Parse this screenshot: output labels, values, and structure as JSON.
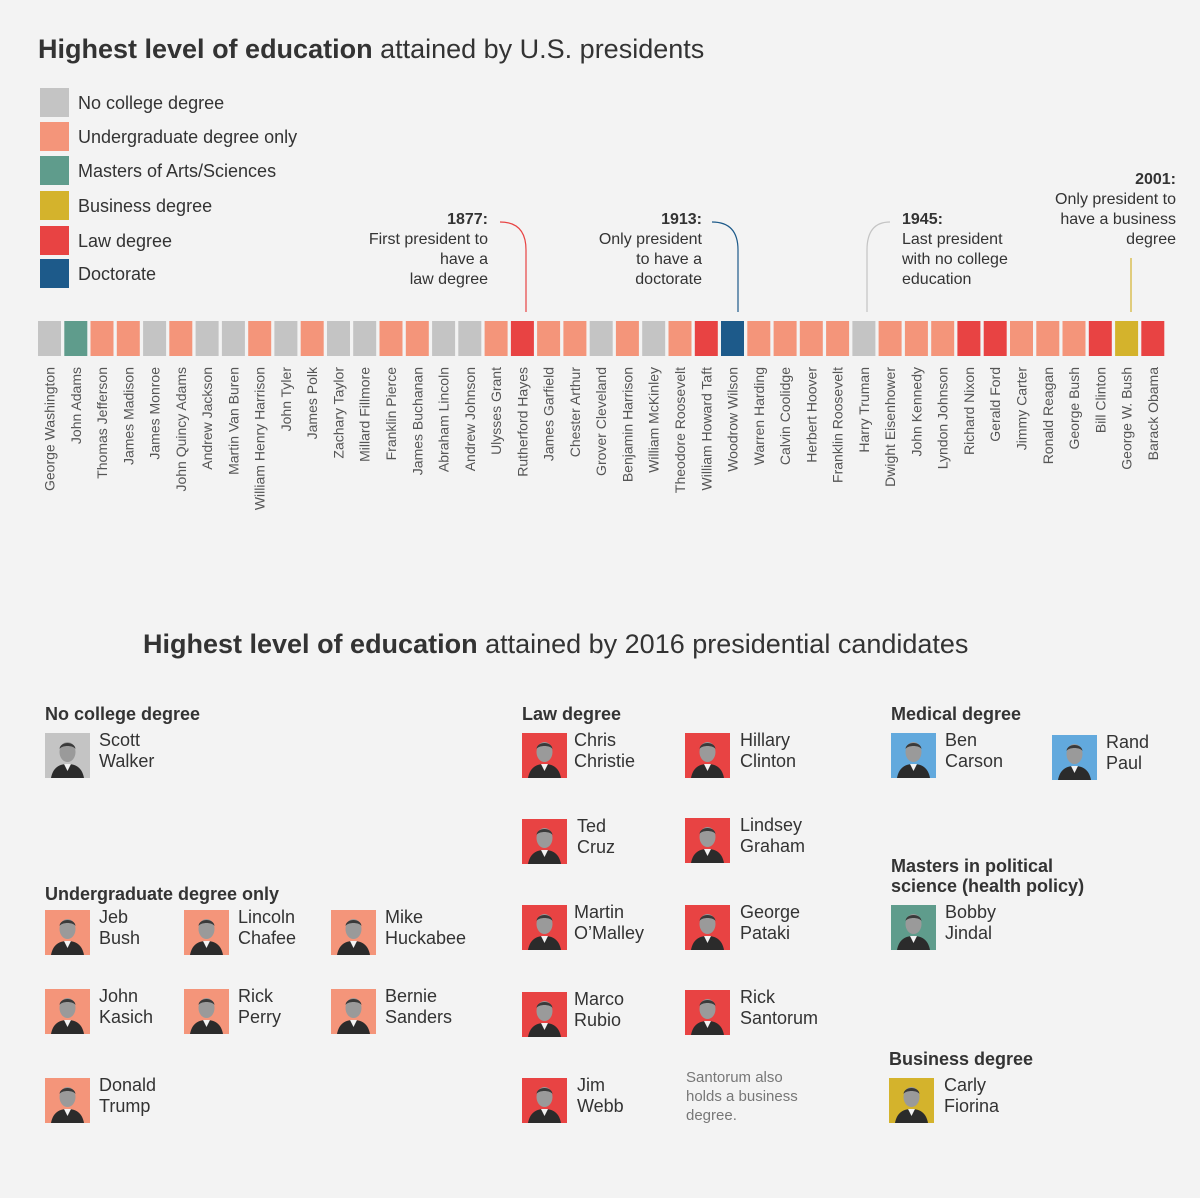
{
  "colors": {
    "none": "#c4c4c4",
    "undergrad": "#f4957a",
    "masters": "#5f9c8c",
    "business": "#d4b32c",
    "law": "#e84343",
    "doctorate": "#1d5a8a",
    "medical": "#62a9dd"
  },
  "top_title": {
    "bold": "Highest level of education",
    "rest": " attained by U.S. presidents"
  },
  "bottom_title": {
    "bold": "Highest level of education",
    "rest": " attained by 2016 presidential candidates"
  },
  "legend": [
    {
      "label": "No college degree",
      "color": "#c4c4c4"
    },
    {
      "label": "Undergraduate degree only",
      "color": "#f4957a"
    },
    {
      "label": "Masters of Arts/Sciences",
      "color": "#5f9c8c"
    },
    {
      "label": "Business degree",
      "color": "#d4b32c"
    },
    {
      "label": "Law degree",
      "color": "#e84343"
    },
    {
      "label": "Doctorate",
      "color": "#1d5a8a"
    }
  ],
  "annotations": [
    {
      "year": "1877:",
      "lines": [
        "First president to",
        "have a",
        "law degree"
      ]
    },
    {
      "year": "1913:",
      "lines": [
        "Only president",
        "to have a",
        "doctorate"
      ]
    },
    {
      "year": "1945:",
      "lines": [
        "Last president",
        "with no college",
        "education"
      ]
    },
    {
      "year": "2001:",
      "lines": [
        "Only president to",
        "have a business",
        "degree"
      ]
    }
  ],
  "chart_data": {
    "type": "table",
    "title": "Highest level of education attained by U.S. presidents",
    "presidents": [
      {
        "name": "George Washington",
        "degree": "No college degree"
      },
      {
        "name": "John Adams",
        "degree": "Masters of Arts/Sciences"
      },
      {
        "name": "Thomas Jefferson",
        "degree": "Undergraduate degree only"
      },
      {
        "name": "James Madison",
        "degree": "Undergraduate degree only"
      },
      {
        "name": "James Monroe",
        "degree": "No college degree"
      },
      {
        "name": "John Quincy Adams",
        "degree": "Undergraduate degree only"
      },
      {
        "name": "Andrew Jackson",
        "degree": "No college degree"
      },
      {
        "name": "Martin Van Buren",
        "degree": "No college degree"
      },
      {
        "name": "William Henry Harrison",
        "degree": "Undergraduate degree only"
      },
      {
        "name": "John Tyler",
        "degree": "No college degree"
      },
      {
        "name": "James Polk",
        "degree": "Undergraduate degree only"
      },
      {
        "name": "Zachary Taylor",
        "degree": "No college degree"
      },
      {
        "name": "Millard Fillmore",
        "degree": "No college degree"
      },
      {
        "name": "Franklin Pierce",
        "degree": "Undergraduate degree only"
      },
      {
        "name": "James Buchanan",
        "degree": "Undergraduate degree only"
      },
      {
        "name": "Abraham Lincoln",
        "degree": "No college degree"
      },
      {
        "name": "Andrew Johnson",
        "degree": "No college degree"
      },
      {
        "name": "Ulysses Grant",
        "degree": "Undergraduate degree only"
      },
      {
        "name": "Rutherford Hayes",
        "degree": "Law degree"
      },
      {
        "name": "James Garfield",
        "degree": "Undergraduate degree only"
      },
      {
        "name": "Chester Arthur",
        "degree": "Undergraduate degree only"
      },
      {
        "name": "Grover Cleveland",
        "degree": "No college degree"
      },
      {
        "name": "Benjamin Harrison",
        "degree": "Undergraduate degree only"
      },
      {
        "name": "William McKinley",
        "degree": "No college degree"
      },
      {
        "name": "Theodore Roosevelt",
        "degree": "Undergraduate degree only"
      },
      {
        "name": "William Howard Taft",
        "degree": "Law degree"
      },
      {
        "name": "Woodrow Wilson",
        "degree": "Doctorate"
      },
      {
        "name": "Warren Harding",
        "degree": "Undergraduate degree only"
      },
      {
        "name": "Calvin Coolidge",
        "degree": "Undergraduate degree only"
      },
      {
        "name": "Herbert Hoover",
        "degree": "Undergraduate degree only"
      },
      {
        "name": "Franklin Roosevelt",
        "degree": "Undergraduate degree only"
      },
      {
        "name": "Harry Truman",
        "degree": "No college degree"
      },
      {
        "name": "Dwight Eisenhower",
        "degree": "Undergraduate degree only"
      },
      {
        "name": "John Kennedy",
        "degree": "Undergraduate degree only"
      },
      {
        "name": "Lyndon Johnson",
        "degree": "Undergraduate degree only"
      },
      {
        "name": "Richard Nixon",
        "degree": "Law degree"
      },
      {
        "name": "Gerald Ford",
        "degree": "Law degree"
      },
      {
        "name": "Jimmy Carter",
        "degree": "Undergraduate degree only"
      },
      {
        "name": "Ronald Reagan",
        "degree": "Undergraduate degree only"
      },
      {
        "name": "George Bush",
        "degree": "Undergraduate degree only"
      },
      {
        "name": "Bill Clinton",
        "degree": "Law degree"
      },
      {
        "name": "George W. Bush",
        "degree": "Business degree"
      },
      {
        "name": "Barack Obama",
        "degree": "Law degree"
      }
    ]
  },
  "candidates": {
    "no_college": {
      "heading": "No college degree",
      "people": [
        {
          "first": "Scott",
          "last": "Walker"
        }
      ]
    },
    "undergrad": {
      "heading": "Undergraduate degree only",
      "people": [
        {
          "first": "Jeb",
          "last": "Bush"
        },
        {
          "first": "Lincoln",
          "last": "Chafee"
        },
        {
          "first": "Mike",
          "last": "Huckabee"
        },
        {
          "first": "John",
          "last": "Kasich"
        },
        {
          "first": "Rick",
          "last": "Perry"
        },
        {
          "first": "Bernie",
          "last": "Sanders"
        },
        {
          "first": "Donald",
          "last": "Trump"
        }
      ]
    },
    "law": {
      "heading": "Law degree",
      "people": [
        {
          "first": "Chris",
          "last": "Christie"
        },
        {
          "first": "Hillary",
          "last": "Clinton"
        },
        {
          "first": "Ted",
          "last": "Cruz"
        },
        {
          "first": "Lindsey",
          "last": "Graham"
        },
        {
          "first": "Martin",
          "last": "O’Malley"
        },
        {
          "first": "George",
          "last": "Pataki"
        },
        {
          "first": "Marco",
          "last": "Rubio"
        },
        {
          "first": "Rick",
          "last": "Santorum"
        },
        {
          "first": "Jim",
          "last": "Webb"
        }
      ]
    },
    "law_note": [
      "Santorum also",
      "holds a business",
      "degree."
    ],
    "medical": {
      "heading": "Medical degree",
      "people": [
        {
          "first": "Ben",
          "last": "Carson"
        },
        {
          "first": "Rand",
          "last": "Paul"
        }
      ]
    },
    "masters": {
      "heading_lines": [
        "Masters in political",
        "science (health policy)"
      ],
      "people": [
        {
          "first": "Bobby",
          "last": "Jindal"
        }
      ]
    },
    "business": {
      "heading": "Business degree",
      "people": [
        {
          "first": "Carly",
          "last": "Fiorina"
        }
      ]
    }
  }
}
